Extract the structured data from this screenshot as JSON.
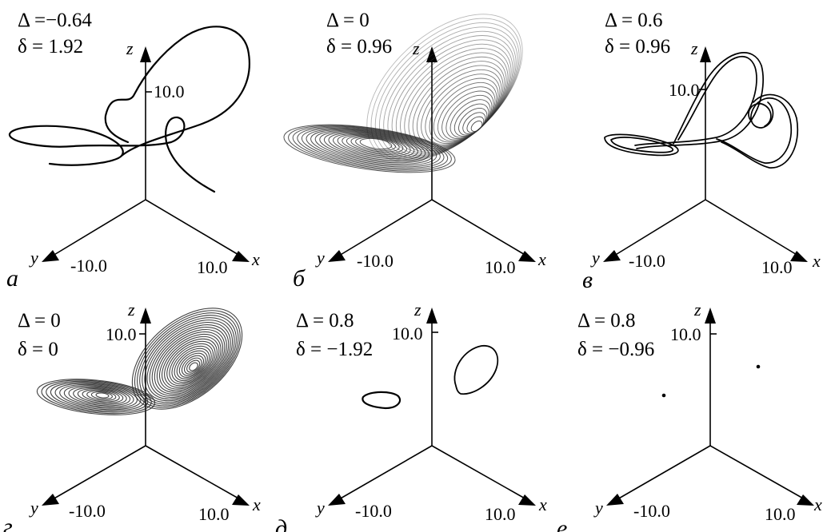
{
  "figure": {
    "axes_labels": {
      "x": "x",
      "y": "y",
      "z": "z"
    },
    "tick_labels": {
      "x": "10.0",
      "y": "-10.0",
      "z": "10.0"
    },
    "panels": [
      {
        "letter": "а",
        "delta_cap": "Δ =−0.64",
        "delta_small": "δ = 1.92",
        "regime": "limit-cycle-large"
      },
      {
        "letter": "б",
        "delta_cap": "Δ = 0",
        "delta_small": "δ = 0.96",
        "regime": "strange-attractor-wide"
      },
      {
        "letter": "в",
        "delta_cap": "Δ = 0.6",
        "delta_small": "δ = 0.96",
        "regime": "limit-cycle-multi"
      },
      {
        "letter": "г",
        "delta_cap": "Δ = 0",
        "delta_small": "δ = 0",
        "regime": "lorenz-attractor"
      },
      {
        "letter": "д",
        "delta_cap": "Δ = 0.8",
        "delta_small": "δ = −1.92",
        "regime": "two-closed-orbits"
      },
      {
        "letter": "е",
        "delta_cap": "Δ = 0.8",
        "delta_small": "δ = −0.96",
        "regime": "two-fixed-points"
      }
    ],
    "colors": {
      "axis": "#000000",
      "trajectory": "#000000",
      "dense": "#333333",
      "background": "#ffffff"
    }
  }
}
